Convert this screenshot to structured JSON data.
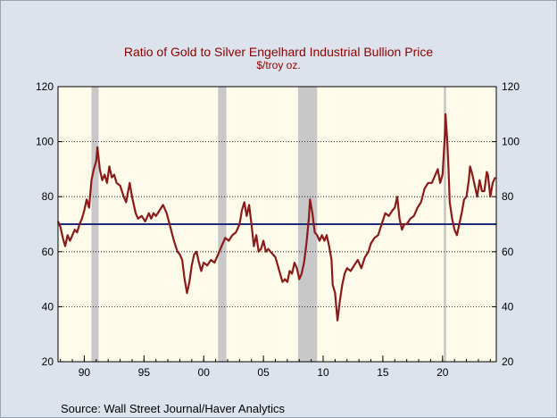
{
  "chart_data": {
    "type": "line",
    "title": "Ratio of Gold to Silver Engelhard Industrial Bullion Price",
    "subtitle": "$/troy oz.",
    "source": "Source:  Wall Street Journal/Haver Analytics",
    "xlim": [
      1987.8,
      2024.5
    ],
    "ylim": [
      20,
      120
    ],
    "y_ticks": [
      20,
      40,
      60,
      80,
      100,
      120
    ],
    "x_ticks": [
      {
        "value": 1990,
        "label": "90"
      },
      {
        "value": 1995,
        "label": "95"
      },
      {
        "value": 2000,
        "label": "00"
      },
      {
        "value": 2005,
        "label": "05"
      },
      {
        "value": 2010,
        "label": "10"
      },
      {
        "value": 2015,
        "label": "15"
      },
      {
        "value": 2020,
        "label": "20"
      }
    ],
    "recessions": [
      {
        "start": 1990.6,
        "end": 1991.2
      },
      {
        "start": 2001.2,
        "end": 2001.9
      },
      {
        "start": 2007.9,
        "end": 2009.5
      },
      {
        "start": 2020.1,
        "end": 2020.3
      }
    ],
    "reference_line": {
      "value": 70,
      "color": "#1f2a78"
    },
    "series": [
      {
        "color": "#8b1a1a",
        "points": [
          [
            1987.8,
            71
          ],
          [
            1988.0,
            69
          ],
          [
            1988.2,
            65
          ],
          [
            1988.4,
            62
          ],
          [
            1988.6,
            66
          ],
          [
            1988.8,
            64
          ],
          [
            1989.0,
            66
          ],
          [
            1989.2,
            68
          ],
          [
            1989.4,
            67
          ],
          [
            1989.6,
            70
          ],
          [
            1989.8,
            72
          ],
          [
            1990.0,
            75
          ],
          [
            1990.2,
            79
          ],
          [
            1990.4,
            76
          ],
          [
            1990.6,
            86
          ],
          [
            1990.8,
            90
          ],
          [
            1991.0,
            93
          ],
          [
            1991.1,
            98
          ],
          [
            1991.3,
            90
          ],
          [
            1991.5,
            86
          ],
          [
            1991.7,
            88
          ],
          [
            1991.9,
            85
          ],
          [
            1992.1,
            91
          ],
          [
            1992.3,
            87
          ],
          [
            1992.5,
            88
          ],
          [
            1992.7,
            85
          ],
          [
            1993.0,
            84
          ],
          [
            1993.3,
            80
          ],
          [
            1993.5,
            78
          ],
          [
            1993.8,
            85
          ],
          [
            1994.0,
            80
          ],
          [
            1994.3,
            74
          ],
          [
            1994.5,
            72
          ],
          [
            1994.8,
            73
          ],
          [
            1995.1,
            71
          ],
          [
            1995.4,
            74
          ],
          [
            1995.6,
            72
          ],
          [
            1995.8,
            74
          ],
          [
            1996.0,
            73
          ],
          [
            1996.3,
            75
          ],
          [
            1996.6,
            77
          ],
          [
            1996.9,
            74
          ],
          [
            1997.2,
            69
          ],
          [
            1997.5,
            64
          ],
          [
            1997.8,
            60
          ],
          [
            1998.0,
            59
          ],
          [
            1998.2,
            57
          ],
          [
            1998.4,
            50
          ],
          [
            1998.6,
            45
          ],
          [
            1998.8,
            49
          ],
          [
            1999.0,
            55
          ],
          [
            1999.2,
            59
          ],
          [
            1999.4,
            60
          ],
          [
            1999.6,
            56
          ],
          [
            1999.8,
            53
          ],
          [
            2000.0,
            56
          ],
          [
            2000.3,
            55
          ],
          [
            2000.6,
            57
          ],
          [
            2000.9,
            56
          ],
          [
            2001.2,
            59
          ],
          [
            2001.5,
            62
          ],
          [
            2001.8,
            65
          ],
          [
            2002.1,
            64
          ],
          [
            2002.4,
            66
          ],
          [
            2002.7,
            67
          ],
          [
            2003.0,
            70
          ],
          [
            2003.2,
            75
          ],
          [
            2003.4,
            78
          ],
          [
            2003.6,
            73
          ],
          [
            2003.8,
            77
          ],
          [
            2004.0,
            70
          ],
          [
            2004.2,
            62
          ],
          [
            2004.4,
            66
          ],
          [
            2004.6,
            60
          ],
          [
            2004.8,
            61
          ],
          [
            2005.0,
            64
          ],
          [
            2005.2,
            60
          ],
          [
            2005.4,
            61
          ],
          [
            2005.6,
            60
          ],
          [
            2005.8,
            59
          ],
          [
            2006.0,
            58
          ],
          [
            2006.2,
            55
          ],
          [
            2006.4,
            52
          ],
          [
            2006.6,
            49
          ],
          [
            2006.8,
            50
          ],
          [
            2007.0,
            49
          ],
          [
            2007.2,
            53
          ],
          [
            2007.4,
            52
          ],
          [
            2007.6,
            56
          ],
          [
            2007.8,
            54
          ],
          [
            2008.0,
            50
          ],
          [
            2008.2,
            52
          ],
          [
            2008.4,
            56
          ],
          [
            2008.6,
            63
          ],
          [
            2008.8,
            72
          ],
          [
            2008.9,
            79
          ],
          [
            2009.1,
            74
          ],
          [
            2009.3,
            67
          ],
          [
            2009.5,
            66
          ],
          [
            2009.7,
            64
          ],
          [
            2009.9,
            66
          ],
          [
            2010.1,
            64
          ],
          [
            2010.3,
            66
          ],
          [
            2010.5,
            62
          ],
          [
            2010.7,
            57
          ],
          [
            2010.8,
            48
          ],
          [
            2011.0,
            45
          ],
          [
            2011.1,
            40
          ],
          [
            2011.2,
            35
          ],
          [
            2011.4,
            42
          ],
          [
            2011.6,
            48
          ],
          [
            2011.8,
            52
          ],
          [
            2012.0,
            54
          ],
          [
            2012.3,
            53
          ],
          [
            2012.6,
            55
          ],
          [
            2012.9,
            57
          ],
          [
            2013.2,
            54
          ],
          [
            2013.5,
            58
          ],
          [
            2013.8,
            60
          ],
          [
            2014.0,
            63
          ],
          [
            2014.3,
            65
          ],
          [
            2014.6,
            66
          ],
          [
            2014.9,
            70
          ],
          [
            2015.2,
            74
          ],
          [
            2015.5,
            73
          ],
          [
            2015.8,
            75
          ],
          [
            2016.0,
            76
          ],
          [
            2016.2,
            80
          ],
          [
            2016.4,
            72
          ],
          [
            2016.6,
            68
          ],
          [
            2016.8,
            70
          ],
          [
            2017.0,
            70
          ],
          [
            2017.3,
            72
          ],
          [
            2017.6,
            73
          ],
          [
            2017.9,
            76
          ],
          [
            2018.2,
            78
          ],
          [
            2018.5,
            83
          ],
          [
            2018.8,
            85
          ],
          [
            2019.1,
            85
          ],
          [
            2019.4,
            88
          ],
          [
            2019.6,
            90
          ],
          [
            2019.8,
            85
          ],
          [
            2020.0,
            88
          ],
          [
            2020.2,
            103
          ],
          [
            2020.25,
            110
          ],
          [
            2020.4,
            100
          ],
          [
            2020.5,
            90
          ],
          [
            2020.6,
            78
          ],
          [
            2020.8,
            72
          ],
          [
            2021.0,
            68
          ],
          [
            2021.2,
            66
          ],
          [
            2021.4,
            70
          ],
          [
            2021.6,
            74
          ],
          [
            2021.8,
            79
          ],
          [
            2022.0,
            80
          ],
          [
            2022.2,
            86
          ],
          [
            2022.3,
            91
          ],
          [
            2022.5,
            88
          ],
          [
            2022.7,
            84
          ],
          [
            2022.9,
            80
          ],
          [
            2023.1,
            86
          ],
          [
            2023.3,
            82
          ],
          [
            2023.5,
            82
          ],
          [
            2023.7,
            89
          ],
          [
            2023.8,
            88
          ],
          [
            2024.0,
            80
          ],
          [
            2024.2,
            85
          ],
          [
            2024.4,
            87
          ]
        ]
      }
    ]
  }
}
